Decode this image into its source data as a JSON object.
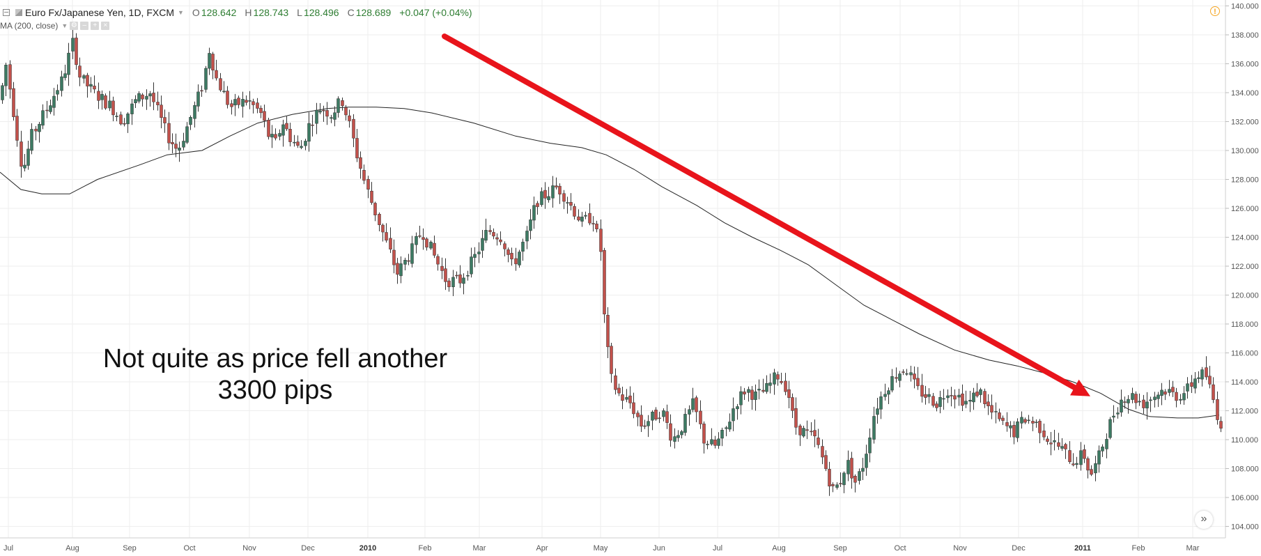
{
  "header": {
    "symbol": "Euro Fx/Japanese Yen, 1D, FXCM",
    "open_label": "O",
    "open_value": "128.642",
    "high_label": "H",
    "high_value": "128.743",
    "low_label": "L",
    "low_value": "128.496",
    "close_label": "C",
    "close_value": "128.689",
    "change": "+0.047 (+0.04%)"
  },
  "indicator": {
    "label": "MA (200, close)"
  },
  "annotation": {
    "text": "Not quite as price fell another\n3300 pips"
  },
  "colors": {
    "up": "#3d7a63",
    "down": "#c2514b",
    "ma_line": "#222222",
    "arrow": "#e8141b",
    "grid": "#eeeeee"
  },
  "icons": [
    "collapse-icon",
    "flag-icon",
    "settings-icon",
    "remove-icon",
    "add-icon",
    "close-icon",
    "alert-icon",
    "double-chevron-right-icon"
  ],
  "chart_data": {
    "type": "candlestick",
    "title": "Euro Fx/Japanese Yen, 1D, FXCM",
    "ylim": [
      104,
      140
    ],
    "y_ticks": [
      "140.000",
      "138.000",
      "136.000",
      "134.000",
      "132.000",
      "130.000",
      "128.000",
      "126.000",
      "124.000",
      "122.000",
      "120.000",
      "118.000",
      "116.000",
      "114.000",
      "112.000",
      "110.000",
      "108.000",
      "106.000",
      "104.000"
    ],
    "x_ticks": [
      "Jul",
      "Aug",
      "Sep",
      "Oct",
      "Nov",
      "Dec",
      "2010",
      "Feb",
      "Mar",
      "Apr",
      "May",
      "Jun",
      "Jul",
      "Aug",
      "Sep",
      "Oct",
      "Nov",
      "Dec",
      "2011",
      "Feb",
      "Mar"
    ],
    "grid": true,
    "price_path": [
      [
        0,
        133.5
      ],
      [
        8,
        136.0
      ],
      [
        18,
        133.0
      ],
      [
        32,
        128.5
      ],
      [
        45,
        131.0
      ],
      [
        68,
        133.0
      ],
      [
        90,
        135.0
      ],
      [
        104,
        137.5
      ],
      [
        115,
        135.0
      ],
      [
        135,
        134.0
      ],
      [
        160,
        133.0
      ],
      [
        175,
        132.0
      ],
      [
        195,
        133.5
      ],
      [
        215,
        134.0
      ],
      [
        240,
        131.0
      ],
      [
        255,
        130.0
      ],
      [
        275,
        132.5
      ],
      [
        290,
        134.5
      ],
      [
        300,
        137.0
      ],
      [
        310,
        135.0
      ],
      [
        330,
        133.0
      ],
      [
        355,
        133.5
      ],
      [
        375,
        132.5
      ],
      [
        385,
        131.0
      ],
      [
        395,
        130.5
      ],
      [
        405,
        132.0
      ],
      [
        415,
        131.0
      ],
      [
        430,
        130.0
      ],
      [
        445,
        132.0
      ],
      [
        460,
        133.0
      ],
      [
        475,
        132.5
      ],
      [
        490,
        133.5
      ],
      [
        500,
        132.0
      ],
      [
        510,
        130.0
      ],
      [
        525,
        127.5
      ],
      [
        540,
        125.5
      ],
      [
        555,
        123.5
      ],
      [
        570,
        121.5
      ],
      [
        590,
        123.0
      ],
      [
        605,
        124.5
      ],
      [
        620,
        123.0
      ],
      [
        640,
        121.0
      ],
      [
        660,
        121.0
      ],
      [
        680,
        122.5
      ],
      [
        700,
        124.5
      ],
      [
        720,
        124.0
      ],
      [
        735,
        122.0
      ],
      [
        755,
        124.0
      ],
      [
        770,
        126.5
      ],
      [
        785,
        127.0
      ],
      [
        800,
        127.5
      ],
      [
        815,
        126.5
      ],
      [
        835,
        125.0
      ],
      [
        850,
        125.5
      ],
      [
        862,
        123.0
      ],
      [
        868,
        117.5
      ],
      [
        878,
        114.0
      ],
      [
        890,
        113.0
      ],
      [
        905,
        112.5
      ],
      [
        920,
        111.0
      ],
      [
        935,
        111.5
      ],
      [
        950,
        112.0
      ],
      [
        965,
        110.0
      ],
      [
        980,
        111.0
      ],
      [
        995,
        112.5
      ],
      [
        1010,
        110.0
      ],
      [
        1025,
        109.5
      ],
      [
        1040,
        110.5
      ],
      [
        1055,
        112.5
      ],
      [
        1070,
        113.5
      ],
      [
        1085,
        113.0
      ],
      [
        1100,
        113.5
      ],
      [
        1115,
        114.5
      ],
      [
        1130,
        113.5
      ],
      [
        1140,
        111.0
      ],
      [
        1155,
        110.5
      ],
      [
        1170,
        110.0
      ],
      [
        1185,
        108.0
      ],
      [
        1195,
        106.5
      ],
      [
        1205,
        107.0
      ],
      [
        1215,
        108.5
      ],
      [
        1228,
        107.0
      ],
      [
        1240,
        108.5
      ],
      [
        1255,
        112.0
      ],
      [
        1270,
        113.5
      ],
      [
        1285,
        114.5
      ],
      [
        1300,
        115.0
      ],
      [
        1315,
        113.5
      ],
      [
        1330,
        113.0
      ],
      [
        1345,
        112.5
      ],
      [
        1360,
        113.5
      ],
      [
        1375,
        113.0
      ],
      [
        1390,
        112.5
      ],
      [
        1405,
        113.5
      ],
      [
        1420,
        112.0
      ],
      [
        1440,
        111.0
      ],
      [
        1455,
        110.5
      ],
      [
        1470,
        111.5
      ],
      [
        1490,
        111.0
      ],
      [
        1505,
        110.0
      ],
      [
        1520,
        109.5
      ],
      [
        1540,
        108.5
      ],
      [
        1555,
        109.0
      ],
      [
        1565,
        107.5
      ],
      [
        1575,
        108.5
      ],
      [
        1588,
        110.5
      ],
      [
        1600,
        112.0
      ],
      [
        1612,
        113.0
      ],
      [
        1625,
        113.0
      ],
      [
        1640,
        112.5
      ],
      [
        1655,
        113.0
      ],
      [
        1670,
        113.5
      ],
      [
        1690,
        113.0
      ],
      [
        1705,
        113.5
      ],
      [
        1718,
        114.5
      ],
      [
        1730,
        114.5
      ],
      [
        1740,
        113.0
      ],
      [
        1748,
        111.5
      ],
      [
        1753,
        111.0
      ]
    ],
    "ma_path": [
      [
        0,
        128.5
      ],
      [
        30,
        127.3
      ],
      [
        60,
        127.0
      ],
      [
        100,
        127.0
      ],
      [
        140,
        128.0
      ],
      [
        200,
        129.0
      ],
      [
        240,
        129.7
      ],
      [
        290,
        130.0
      ],
      [
        330,
        131.0
      ],
      [
        370,
        131.9
      ],
      [
        420,
        132.5
      ],
      [
        470,
        132.9
      ],
      [
        500,
        133.0
      ],
      [
        540,
        133.0
      ],
      [
        580,
        132.9
      ],
      [
        620,
        132.6
      ],
      [
        680,
        131.9
      ],
      [
        740,
        131.0
      ],
      [
        790,
        130.5
      ],
      [
        835,
        130.2
      ],
      [
        870,
        129.7
      ],
      [
        910,
        128.7
      ],
      [
        950,
        127.5
      ],
      [
        1000,
        126.2
      ],
      [
        1040,
        125.0
      ],
      [
        1080,
        124.0
      ],
      [
        1120,
        123.1
      ],
      [
        1160,
        122.1
      ],
      [
        1200,
        120.7
      ],
      [
        1240,
        119.3
      ],
      [
        1280,
        118.3
      ],
      [
        1320,
        117.3
      ],
      [
        1370,
        116.2
      ],
      [
        1420,
        115.5
      ],
      [
        1460,
        115.1
      ],
      [
        1500,
        114.6
      ],
      [
        1540,
        114.0
      ],
      [
        1580,
        113.2
      ],
      [
        1620,
        112.1
      ],
      [
        1650,
        111.6
      ],
      [
        1690,
        111.5
      ],
      [
        1720,
        111.5
      ],
      [
        1750,
        111.7
      ]
    ],
    "ma_period": 200,
    "trend_arrow": {
      "from": [
        638,
        137.9
      ],
      "to": [
        1565,
        113.0
      ]
    }
  }
}
